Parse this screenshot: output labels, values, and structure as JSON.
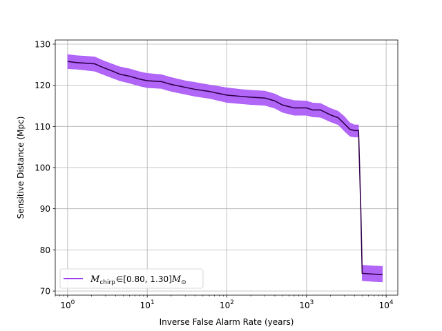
{
  "chart_data": {
    "type": "line",
    "title": "",
    "xlabel": "Inverse False Alarm Rate (years)",
    "ylabel": "Sensitive Distance (Mpc)",
    "xscale": "log",
    "xlim": [
      0.7,
      14000
    ],
    "ylim": [
      69,
      131
    ],
    "grid": true,
    "legend_position": "lower-left",
    "x_ticks": [
      {
        "value": 1,
        "base": "10",
        "exp": "0"
      },
      {
        "value": 10,
        "base": "10",
        "exp": "1"
      },
      {
        "value": 100,
        "base": "10",
        "exp": "2"
      },
      {
        "value": 1000,
        "base": "10",
        "exp": "3"
      },
      {
        "value": 10000,
        "base": "10",
        "exp": "4"
      }
    ],
    "y_ticks": [
      70,
      80,
      90,
      100,
      110,
      120,
      130
    ],
    "series": [
      {
        "name": "M_chirp ∈ [0.80, 1.30] M_⊙",
        "legend": {
          "m": "M",
          "sub": "chirp",
          "range": "∈[0.80, 1.30]",
          "m2": "M",
          "sub2": "⊙"
        },
        "line_color": "#30004a",
        "band_color": "#a855f7",
        "legend_color": "#7a00e6",
        "x": [
          1,
          1.3,
          1.6,
          2.2,
          2.8,
          3.6,
          4.5,
          6,
          8,
          10,
          15,
          20,
          30,
          40,
          60,
          100,
          150,
          200,
          300,
          400,
          500,
          700,
          1000,
          1200,
          1500,
          2000,
          2500,
          3000,
          3500,
          4000,
          4500,
          4800,
          5000,
          7000,
          9000
        ],
        "y": [
          125.8,
          125.5,
          125.4,
          125.2,
          124.3,
          123.5,
          122.7,
          122.2,
          121.5,
          121.1,
          120.9,
          120.2,
          119.5,
          119.0,
          118.5,
          117.6,
          117.3,
          117.1,
          116.9,
          116.2,
          115.2,
          114.5,
          114.5,
          114.0,
          114.0,
          112.8,
          112.1,
          110.6,
          109.3,
          109.0,
          109.0,
          90.0,
          74.3,
          74.1,
          74.0
        ],
        "upper": [
          127.5,
          127.2,
          127.1,
          126.9,
          126.0,
          125.2,
          124.5,
          124.0,
          123.3,
          122.9,
          122.6,
          121.9,
          121.1,
          120.7,
          120.1,
          119.4,
          119.0,
          118.8,
          118.6,
          117.9,
          117.0,
          116.3,
          116.2,
          115.7,
          115.6,
          114.4,
          113.7,
          112.4,
          110.9,
          110.4,
          110.4,
          91.8,
          76.3,
          76.1,
          76.0
        ],
        "lower": [
          124.0,
          123.9,
          123.7,
          123.4,
          122.6,
          121.8,
          121.1,
          120.5,
          119.8,
          119.4,
          119.2,
          118.5,
          117.8,
          117.3,
          116.8,
          115.8,
          115.5,
          115.3,
          115.1,
          114.4,
          113.4,
          112.7,
          112.7,
          112.3,
          112.2,
          111.1,
          110.4,
          108.8,
          107.6,
          107.4,
          107.4,
          88.2,
          72.5,
          72.3,
          72.2
        ]
      }
    ]
  }
}
